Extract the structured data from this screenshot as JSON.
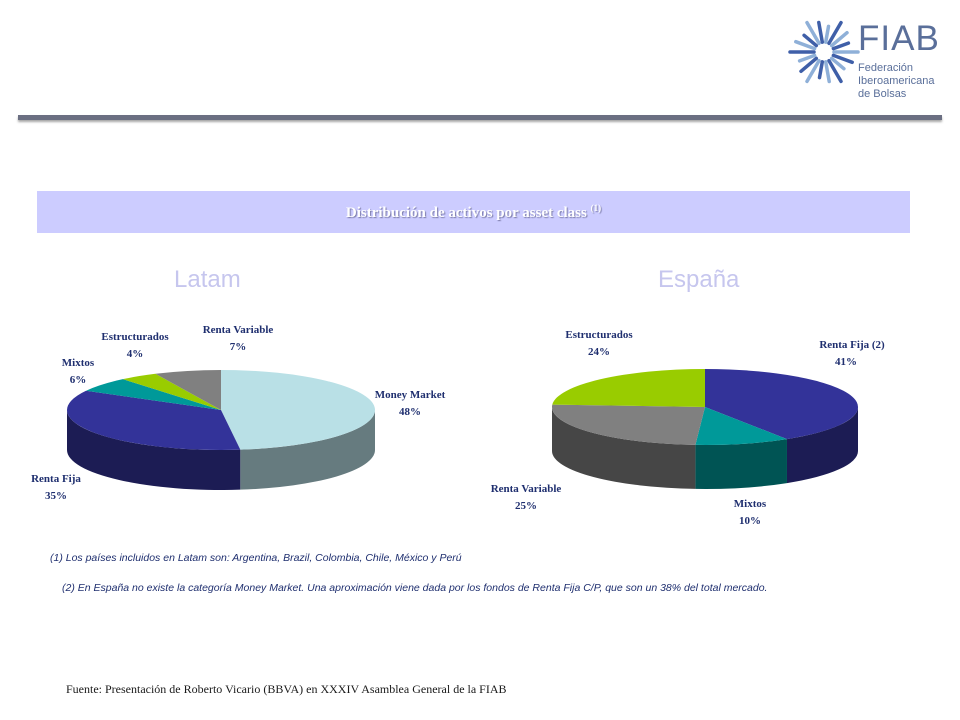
{
  "logo": {
    "name": "FIAB",
    "subtitle_lines": [
      "Federación",
      "Iberoamericana",
      "de Bolsas"
    ]
  },
  "banner": {
    "title": "Distribución de activos por asset class",
    "note_mark": "(1)"
  },
  "colors": {
    "banner_bg": "#ccccff",
    "region_title": "#c6c6ee",
    "label": "#1f2f6f",
    "money_market": "#b9e0e6",
    "renta_fija": "#333399",
    "mixtos": "#009999",
    "estructurados": "#99cc00",
    "renta_variable": "#808080"
  },
  "chart_data": [
    {
      "type": "pie",
      "title": "Latam",
      "three_d": true,
      "slices": [
        {
          "name": "Money Market",
          "value": 48,
          "label": "48%"
        },
        {
          "name": "Renta Fija",
          "value": 35,
          "label": "35%"
        },
        {
          "name": "Mixtos",
          "value": 6,
          "label": "6%"
        },
        {
          "name": "Estructurados",
          "value": 4,
          "label": "4%"
        },
        {
          "name": "Renta Variable",
          "value": 7,
          "label": "7%"
        }
      ]
    },
    {
      "type": "pie",
      "title": "España",
      "three_d": true,
      "slices": [
        {
          "name": "Renta Fija (2)",
          "value": 41,
          "label": "41%"
        },
        {
          "name": "Mixtos",
          "value": 10,
          "label": "10%"
        },
        {
          "name": "Renta Variable",
          "value": 25,
          "label": "25%"
        },
        {
          "name": "Estructurados",
          "value": 24,
          "label": "24%"
        }
      ]
    }
  ],
  "notes": {
    "n1": "(1) Los países incluidos en Latam son: Argentina, Brazil, Colombia, Chile, México y Perú",
    "n2": "(2) En España no existe la categoría Money Market. Una aproximación viene dada por los fondos de Renta Fija C/P, que son un 38% del total mercado."
  },
  "source": "Fuente: Presentación de Roberto Vicario  (BBVA) en XXXIV Asamblea General de la FIAB"
}
